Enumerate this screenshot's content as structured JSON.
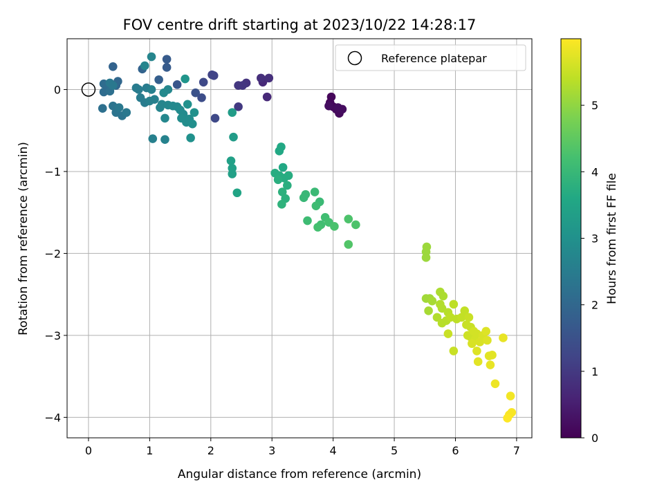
{
  "chart_data": {
    "type": "scatter",
    "title": "FOV centre drift starting at 2023/10/22 14:28:17",
    "xlabel": "Angular distance from reference (arcmin)",
    "ylabel": "Rotation from reference (arcmin)",
    "xlim": [
      -0.35,
      7.25
    ],
    "ylim": [
      -4.25,
      0.62
    ],
    "xticks": [
      0,
      1,
      2,
      3,
      4,
      5,
      6,
      7
    ],
    "yticks": [
      0,
      -1,
      -2,
      -3,
      -4
    ],
    "grid": true,
    "legend": {
      "label": "Reference platepar",
      "position": "top-right"
    },
    "reference_point": {
      "x": 0,
      "y": 0
    },
    "colorbar": {
      "label": "Hours from first FF file",
      "range": [
        0,
        6.0
      ],
      "ticks": [
        0,
        1,
        2,
        3,
        4,
        5
      ],
      "colormap": "viridis"
    },
    "points": [
      {
        "x": 3.97,
        "y": -0.09,
        "t": 0.1
      },
      {
        "x": 3.95,
        "y": -0.16,
        "t": 0.1
      },
      {
        "x": 4.0,
        "y": -0.21,
        "t": 0.1
      },
      {
        "x": 4.05,
        "y": -0.24,
        "t": 0.15
      },
      {
        "x": 4.1,
        "y": -0.29,
        "t": 0.15
      },
      {
        "x": 4.15,
        "y": -0.24,
        "t": 0.2
      },
      {
        "x": 3.93,
        "y": -0.2,
        "t": 0.2
      },
      {
        "x": 4.08,
        "y": -0.22,
        "t": 0.2
      },
      {
        "x": 2.92,
        "y": -0.09,
        "t": 0.7
      },
      {
        "x": 2.85,
        "y": 0.09,
        "t": 0.7
      },
      {
        "x": 2.82,
        "y": 0.14,
        "t": 0.8
      },
      {
        "x": 2.95,
        "y": 0.14,
        "t": 0.8
      },
      {
        "x": 2.58,
        "y": 0.08,
        "t": 0.9
      },
      {
        "x": 2.52,
        "y": 0.05,
        "t": 0.95
      },
      {
        "x": 2.45,
        "y": 0.05,
        "t": 0.95
      },
      {
        "x": 2.45,
        "y": -0.21,
        "t": 1.0
      },
      {
        "x": 2.05,
        "y": 0.17,
        "t": 1.2
      },
      {
        "x": 2.02,
        "y": 0.18,
        "t": 1.2
      },
      {
        "x": 1.88,
        "y": 0.09,
        "t": 1.3
      },
      {
        "x": 2.07,
        "y": -0.35,
        "t": 1.3
      },
      {
        "x": 1.85,
        "y": -0.1,
        "t": 1.4
      },
      {
        "x": 1.75,
        "y": -0.04,
        "t": 1.5
      },
      {
        "x": 1.45,
        "y": 0.06,
        "t": 1.6
      },
      {
        "x": 1.28,
        "y": 0.37,
        "t": 1.7
      },
      {
        "x": 1.28,
        "y": 0.27,
        "t": 1.7
      },
      {
        "x": 1.15,
        "y": 0.12,
        "t": 1.8
      },
      {
        "x": 0.88,
        "y": 0.25,
        "t": 1.9
      },
      {
        "x": 0.4,
        "y": 0.28,
        "t": 1.9
      },
      {
        "x": 0.45,
        "y": 0.05,
        "t": 2.0
      },
      {
        "x": 0.48,
        "y": 0.1,
        "t": 2.0
      },
      {
        "x": 0.25,
        "y": 0.07,
        "t": 2.1
      },
      {
        "x": 0.3,
        "y": 0.02,
        "t": 2.1
      },
      {
        "x": 0.25,
        "y": -0.03,
        "t": 2.1
      },
      {
        "x": 0.35,
        "y": -0.02,
        "t": 2.2
      },
      {
        "x": 0.23,
        "y": -0.23,
        "t": 2.2
      },
      {
        "x": 0.4,
        "y": -0.2,
        "t": 2.3
      },
      {
        "x": 0.45,
        "y": -0.28,
        "t": 2.3
      },
      {
        "x": 0.55,
        "y": -0.32,
        "t": 2.3
      },
      {
        "x": 0.62,
        "y": -0.28,
        "t": 2.4
      },
      {
        "x": 0.5,
        "y": -0.22,
        "t": 2.4
      },
      {
        "x": 0.35,
        "y": 0.08,
        "t": 2.4
      },
      {
        "x": 0.4,
        "y": 0.05,
        "t": 2.4
      },
      {
        "x": 0.85,
        "y": -0.1,
        "t": 2.5
      },
      {
        "x": 0.92,
        "y": -0.16,
        "t": 2.5
      },
      {
        "x": 0.95,
        "y": 0.02,
        "t": 2.5
      },
      {
        "x": 0.78,
        "y": 0.02,
        "t": 2.5
      },
      {
        "x": 0.82,
        "y": 0.0,
        "t": 2.5
      },
      {
        "x": 1.0,
        "y": -0.14,
        "t": 2.6
      },
      {
        "x": 1.03,
        "y": 0.0,
        "t": 2.6
      },
      {
        "x": 1.08,
        "y": -0.12,
        "t": 2.6
      },
      {
        "x": 1.05,
        "y": -0.6,
        "t": 2.6
      },
      {
        "x": 1.25,
        "y": -0.61,
        "t": 2.65
      },
      {
        "x": 1.03,
        "y": 0.4,
        "t": 2.7
      },
      {
        "x": 0.92,
        "y": 0.29,
        "t": 2.7
      },
      {
        "x": 1.2,
        "y": -0.18,
        "t": 2.7
      },
      {
        "x": 1.17,
        "y": -0.22,
        "t": 2.7
      },
      {
        "x": 1.25,
        "y": -0.35,
        "t": 2.75
      },
      {
        "x": 1.3,
        "y": -0.19,
        "t": 2.75
      },
      {
        "x": 1.3,
        "y": 0.0,
        "t": 2.75
      },
      {
        "x": 1.23,
        "y": -0.04,
        "t": 2.8
      },
      {
        "x": 1.38,
        "y": -0.2,
        "t": 2.8
      },
      {
        "x": 1.45,
        "y": -0.21,
        "t": 2.8
      },
      {
        "x": 1.5,
        "y": -0.25,
        "t": 2.85
      },
      {
        "x": 1.55,
        "y": -0.3,
        "t": 2.85
      },
      {
        "x": 1.52,
        "y": -0.35,
        "t": 2.9
      },
      {
        "x": 1.6,
        "y": -0.4,
        "t": 2.9
      },
      {
        "x": 1.65,
        "y": -0.36,
        "t": 2.9
      },
      {
        "x": 1.7,
        "y": -0.42,
        "t": 2.95
      },
      {
        "x": 1.62,
        "y": -0.18,
        "t": 3.0
      },
      {
        "x": 1.73,
        "y": -0.28,
        "t": 3.0
      },
      {
        "x": 1.67,
        "y": -0.59,
        "t": 3.0
      },
      {
        "x": 1.58,
        "y": 0.13,
        "t": 3.1
      },
      {
        "x": 2.35,
        "y": -0.28,
        "t": 3.3
      },
      {
        "x": 2.37,
        "y": -0.58,
        "t": 3.3
      },
      {
        "x": 2.33,
        "y": -0.87,
        "t": 3.4
      },
      {
        "x": 2.35,
        "y": -0.96,
        "t": 3.4
      },
      {
        "x": 2.35,
        "y": -1.03,
        "t": 3.4
      },
      {
        "x": 2.43,
        "y": -1.26,
        "t": 3.5
      },
      {
        "x": 3.15,
        "y": -0.7,
        "t": 3.6
      },
      {
        "x": 3.12,
        "y": -0.75,
        "t": 3.6
      },
      {
        "x": 3.18,
        "y": -0.95,
        "t": 3.6
      },
      {
        "x": 3.05,
        "y": -1.02,
        "t": 3.7
      },
      {
        "x": 3.12,
        "y": -1.05,
        "t": 3.7
      },
      {
        "x": 3.2,
        "y": -1.08,
        "t": 3.7
      },
      {
        "x": 3.27,
        "y": -1.05,
        "t": 3.7
      },
      {
        "x": 3.1,
        "y": -1.1,
        "t": 3.75
      },
      {
        "x": 3.25,
        "y": -1.17,
        "t": 3.75
      },
      {
        "x": 3.17,
        "y": -1.25,
        "t": 3.8
      },
      {
        "x": 3.22,
        "y": -1.33,
        "t": 3.8
      },
      {
        "x": 3.16,
        "y": -1.4,
        "t": 3.85
      },
      {
        "x": 3.52,
        "y": -1.32,
        "t": 4.0
      },
      {
        "x": 3.55,
        "y": -1.28,
        "t": 4.0
      },
      {
        "x": 3.7,
        "y": -1.25,
        "t": 4.05
      },
      {
        "x": 3.78,
        "y": -1.37,
        "t": 4.05
      },
      {
        "x": 3.72,
        "y": -1.42,
        "t": 4.1
      },
      {
        "x": 3.58,
        "y": -1.6,
        "t": 4.1
      },
      {
        "x": 3.87,
        "y": -1.56,
        "t": 4.15
      },
      {
        "x": 3.8,
        "y": -1.65,
        "t": 4.15
      },
      {
        "x": 3.75,
        "y": -1.68,
        "t": 4.2
      },
      {
        "x": 3.93,
        "y": -1.62,
        "t": 4.2
      },
      {
        "x": 4.02,
        "y": -1.67,
        "t": 4.25
      },
      {
        "x": 4.25,
        "y": -1.58,
        "t": 4.3
      },
      {
        "x": 4.37,
        "y": -1.65,
        "t": 4.3
      },
      {
        "x": 4.25,
        "y": -1.89,
        "t": 4.35
      },
      {
        "x": 5.53,
        "y": -1.92,
        "t": 5.1
      },
      {
        "x": 5.52,
        "y": -1.98,
        "t": 5.1
      },
      {
        "x": 5.52,
        "y": -2.05,
        "t": 5.1
      },
      {
        "x": 5.52,
        "y": -2.55,
        "t": 5.15
      },
      {
        "x": 5.58,
        "y": -2.55,
        "t": 5.15
      },
      {
        "x": 5.62,
        "y": -2.58,
        "t": 5.2
      },
      {
        "x": 5.56,
        "y": -2.7,
        "t": 5.2
      },
      {
        "x": 5.75,
        "y": -2.47,
        "t": 5.25
      },
      {
        "x": 5.8,
        "y": -2.52,
        "t": 5.25
      },
      {
        "x": 5.75,
        "y": -2.62,
        "t": 5.3
      },
      {
        "x": 5.78,
        "y": -2.67,
        "t": 5.3
      },
      {
        "x": 5.7,
        "y": -2.78,
        "t": 5.3
      },
      {
        "x": 5.78,
        "y": -2.85,
        "t": 5.35
      },
      {
        "x": 5.85,
        "y": -2.82,
        "t": 5.35
      },
      {
        "x": 5.88,
        "y": -2.72,
        "t": 5.35
      },
      {
        "x": 5.92,
        "y": -2.78,
        "t": 5.4
      },
      {
        "x": 5.97,
        "y": -2.62,
        "t": 5.4
      },
      {
        "x": 6.02,
        "y": -2.8,
        "t": 5.4
      },
      {
        "x": 6.1,
        "y": -2.78,
        "t": 5.45
      },
      {
        "x": 6.15,
        "y": -2.7,
        "t": 5.45
      },
      {
        "x": 6.22,
        "y": -2.78,
        "t": 5.5
      },
      {
        "x": 6.18,
        "y": -2.87,
        "t": 5.5
      },
      {
        "x": 6.25,
        "y": -2.9,
        "t": 5.5
      },
      {
        "x": 5.88,
        "y": -2.98,
        "t": 5.5
      },
      {
        "x": 5.97,
        "y": -3.19,
        "t": 5.5
      },
      {
        "x": 6.2,
        "y": -3.0,
        "t": 5.55
      },
      {
        "x": 6.25,
        "y": -3.02,
        "t": 5.55
      },
      {
        "x": 6.3,
        "y": -2.95,
        "t": 5.6
      },
      {
        "x": 6.32,
        "y": -3.05,
        "t": 5.6
      },
      {
        "x": 6.35,
        "y": -2.98,
        "t": 5.6
      },
      {
        "x": 6.27,
        "y": -3.1,
        "t": 5.65
      },
      {
        "x": 6.4,
        "y": -3.08,
        "t": 5.65
      },
      {
        "x": 6.45,
        "y": -3.0,
        "t": 5.65
      },
      {
        "x": 6.5,
        "y": -2.95,
        "t": 5.7
      },
      {
        "x": 6.52,
        "y": -3.06,
        "t": 5.7
      },
      {
        "x": 6.35,
        "y": -3.19,
        "t": 5.7
      },
      {
        "x": 6.37,
        "y": -3.32,
        "t": 5.75
      },
      {
        "x": 6.55,
        "y": -3.25,
        "t": 5.75
      },
      {
        "x": 6.6,
        "y": -3.24,
        "t": 5.75
      },
      {
        "x": 6.57,
        "y": -3.36,
        "t": 5.8
      },
      {
        "x": 6.78,
        "y": -3.03,
        "t": 5.8
      },
      {
        "x": 6.65,
        "y": -3.59,
        "t": 5.85
      },
      {
        "x": 6.9,
        "y": -3.74,
        "t": 5.9
      },
      {
        "x": 6.92,
        "y": -3.94,
        "t": 5.95
      },
      {
        "x": 6.88,
        "y": -3.97,
        "t": 5.95
      },
      {
        "x": 6.85,
        "y": -4.01,
        "t": 6.0
      }
    ]
  }
}
